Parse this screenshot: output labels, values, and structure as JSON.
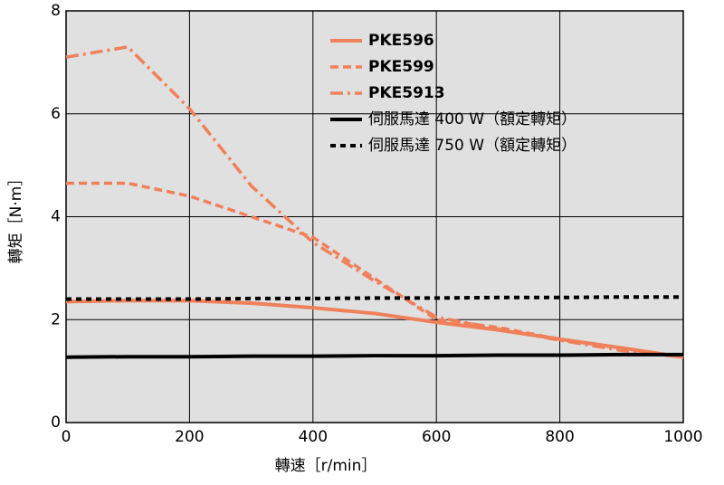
{
  "chart_data": {
    "type": "line",
    "x_label": "轉速［r/min］",
    "y_label": "轉矩［N·m］",
    "x": [
      0,
      100,
      200,
      300,
      400,
      500,
      600,
      700,
      800,
      900,
      1000
    ],
    "series": [
      {
        "name": "PKE596",
        "color": "#f0805a",
        "style": "solid",
        "values": [
          2.35,
          2.37,
          2.37,
          2.32,
          2.23,
          2.12,
          1.95,
          1.8,
          1.62,
          1.45,
          1.27
        ]
      },
      {
        "name": "PKE599",
        "color": "#f0805a",
        "style": "dashed",
        "values": [
          4.65,
          4.65,
          4.4,
          4.0,
          3.6,
          2.8,
          2.0,
          1.85,
          1.62,
          1.45,
          1.27
        ]
      },
      {
        "name": "PKE5913",
        "color": "#f0805a",
        "style": "dashdot",
        "values": [
          7.1,
          7.3,
          6.1,
          4.6,
          3.5,
          2.75,
          2.05,
          1.82,
          1.6,
          1.4,
          1.27
        ]
      },
      {
        "name": "伺服馬達 400 W（額定轉矩）",
        "color": "#000000",
        "style": "solid",
        "values": [
          1.27,
          1.28,
          1.28,
          1.29,
          1.29,
          1.3,
          1.3,
          1.31,
          1.31,
          1.32,
          1.32
        ]
      },
      {
        "name": "伺服馬達 750 W（額定轉矩）",
        "color": "#000000",
        "style": "dotted",
        "values": [
          2.4,
          2.4,
          2.4,
          2.41,
          2.41,
          2.42,
          2.42,
          2.43,
          2.43,
          2.44,
          2.44
        ]
      }
    ],
    "xlim": [
      0,
      1000
    ],
    "xticks": [
      0,
      200,
      400,
      600,
      800,
      1000
    ],
    "ylim": [
      0,
      8
    ],
    "yticks": [
      0,
      2,
      4,
      6,
      8
    ],
    "grid": true,
    "legend": "upper right"
  }
}
